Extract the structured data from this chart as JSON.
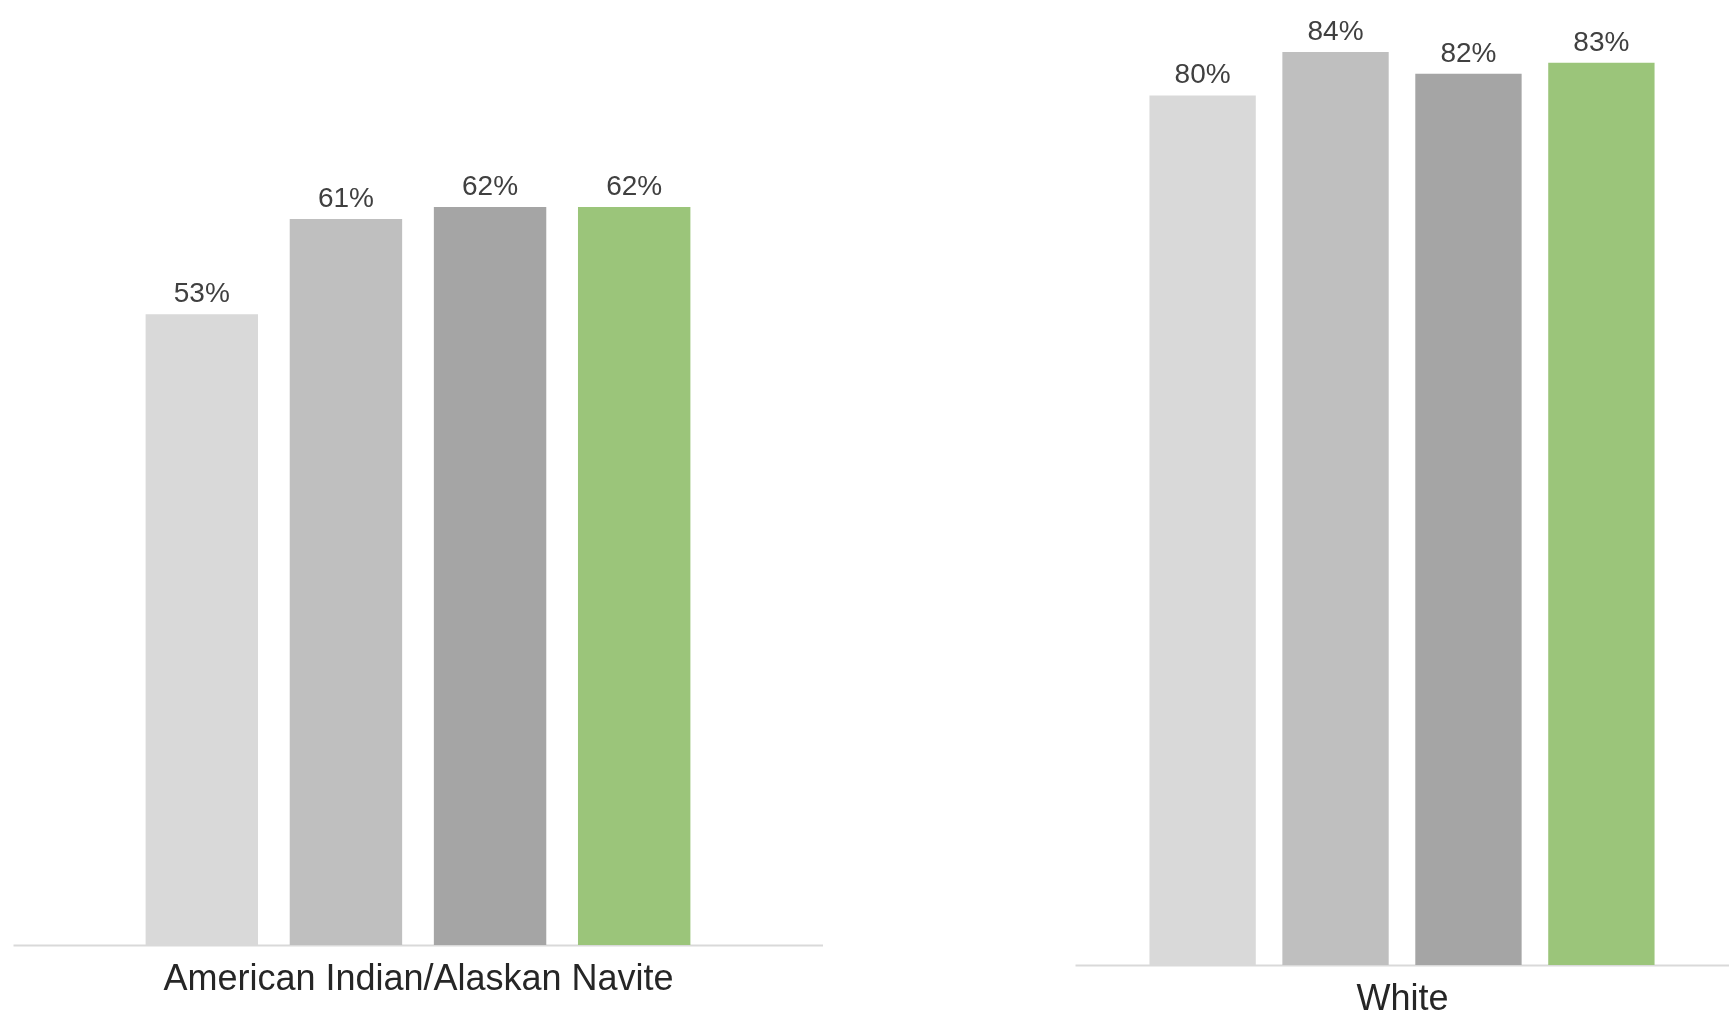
{
  "chart_data": [
    {
      "type": "bar",
      "xlabel": "American Indian/Alaskan Navite",
      "categories": [
        null,
        null,
        null,
        null
      ],
      "values": [
        53,
        61,
        62,
        62
      ],
      "colors": [
        "#d9d9d9",
        "#bfbfbf",
        "#a5a5a5",
        "#9bc57a"
      ],
      "value_labels": [
        "53%",
        "61%",
        "62%",
        "62%"
      ]
    },
    {
      "type": "bar",
      "xlabel": "White",
      "categories": [
        null,
        null,
        null,
        null
      ],
      "values": [
        80,
        84,
        82,
        83
      ],
      "colors": [
        "#d9d9d9",
        "#bfbfbf",
        "#a5a5a5",
        "#9bc57a"
      ],
      "value_labels": [
        "80%",
        "84%",
        "82%",
        "83%"
      ]
    }
  ]
}
